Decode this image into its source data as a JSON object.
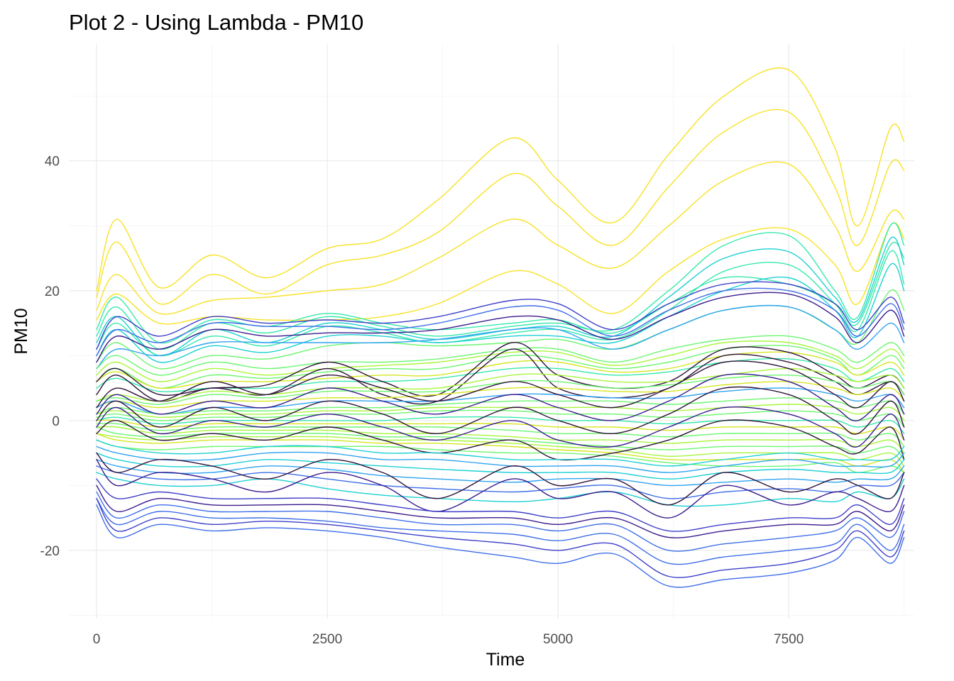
{
  "chart_data": {
    "type": "line",
    "title": "Plot 2 - Using Lambda - PM10",
    "xlabel": "Time",
    "ylabel": "PM10",
    "xlim": [
      -300,
      8860
    ],
    "ylim": [
      -30.5,
      58
    ],
    "x_ticks": [
      0,
      2500,
      5000,
      7500
    ],
    "x_tick_labels": [
      "0",
      "2500",
      "5000",
      "7500"
    ],
    "y_ticks": [
      -20,
      0,
      20,
      40
    ],
    "y_tick_labels": [
      "-20",
      "0",
      "20",
      "40"
    ],
    "grid": true,
    "legend": "none",
    "colormap": "viridis-turbo",
    "palette": [
      "#30123b",
      "#3a1a8c",
      "#3e3ec9",
      "#3f6ee8",
      "#2fa3f0",
      "#1ed0d3",
      "#35e9ab",
      "#6bf66f",
      "#a7f63a",
      "#d4e71f",
      "#f7e225"
    ],
    "x": [
      0,
      220,
      680,
      1250,
      1850,
      2500,
      3100,
      3700,
      4500,
      5000,
      5600,
      6200,
      6800,
      7500,
      8000,
      8250,
      8600,
      8750
    ],
    "series": [
      {
        "values": [
          20,
          31,
          20.5,
          25.5,
          22,
          26.5,
          28,
          34,
          43.5,
          37,
          30.5,
          41,
          50,
          54,
          42,
          30,
          45,
          43
        ],
        "color": "#f7e225"
      },
      {
        "values": [
          19,
          27.5,
          18,
          22.5,
          19.5,
          24,
          25.5,
          29,
          38,
          33,
          27,
          36,
          44.5,
          47.5,
          36,
          27,
          39.5,
          38.5
        ],
        "color": "#f7e225"
      },
      {
        "values": [
          17,
          22.5,
          16.5,
          18.5,
          19,
          20,
          21,
          25,
          31,
          27,
          23.5,
          30,
          37,
          39.5,
          30,
          23,
          32,
          31
        ],
        "color": "#f7e225"
      },
      {
        "values": [
          15.5,
          19.5,
          15,
          16,
          15.5,
          15.5,
          16,
          18,
          23,
          21,
          16.5,
          23,
          28,
          29.5,
          24,
          18,
          30,
          28
        ],
        "color": "#f7e225"
      },
      {
        "values": [
          14,
          19,
          12,
          15.5,
          14.5,
          16.5,
          15,
          14,
          15,
          15.5,
          13.5,
          18,
          22,
          21,
          18,
          15,
          27,
          25
        ],
        "color": "#35e9ab"
      },
      {
        "values": [
          13,
          17.5,
          11,
          15,
          13.5,
          16,
          14.5,
          13,
          14.5,
          15,
          14,
          20,
          27,
          28.5,
          20,
          16,
          30,
          27
        ],
        "color": "#35e9ab"
      },
      {
        "values": [
          12,
          16,
          10,
          14,
          12,
          15,
          14,
          12.5,
          14,
          14.5,
          13,
          19,
          25,
          26,
          19,
          15.5,
          28,
          24
        ],
        "color": "#1ed0d3"
      },
      {
        "values": [
          11,
          15,
          10,
          13,
          11.5,
          14.5,
          13.5,
          12,
          13.5,
          14,
          12.5,
          17,
          23,
          24,
          18,
          14,
          26,
          21
        ],
        "color": "#35e9ab"
      },
      {
        "values": [
          10,
          14,
          9,
          11.5,
          10.5,
          13,
          13,
          12,
          13,
          13,
          12,
          16,
          20,
          22,
          17,
          13,
          24,
          20
        ],
        "color": "#1ed0d3"
      },
      {
        "values": [
          9,
          12,
          8,
          10,
          9.5,
          11.5,
          12,
          11.5,
          12,
          12.5,
          11,
          14,
          17,
          17.5,
          14,
          12,
          20,
          17
        ],
        "color": "#6bf66f"
      },
      {
        "values": [
          11,
          16,
          13,
          16,
          15,
          15.5,
          15,
          16,
          18.5,
          18,
          14,
          18,
          21,
          21,
          18,
          14,
          19,
          15
        ],
        "color": "#3e3ec9"
      },
      {
        "values": [
          10,
          14,
          12,
          15,
          14.5,
          14.5,
          14,
          15,
          17.5,
          17,
          13,
          17,
          20,
          20,
          17,
          13,
          18,
          14
        ],
        "color": "#3f6ee8"
      },
      {
        "values": [
          9,
          13,
          11,
          14,
          13,
          13.5,
          13.5,
          14,
          16,
          15.5,
          12.5,
          16,
          19,
          19.5,
          16,
          12,
          17,
          13
        ],
        "color": "#3a1a8c"
      },
      {
        "values": [
          8,
          11,
          10,
          12,
          12,
          12,
          12,
          12.5,
          14,
          14,
          11,
          14,
          17,
          17.5,
          14,
          11,
          15,
          12
        ],
        "color": "#2fa3f0"
      },
      {
        "values": [
          8,
          10,
          7,
          9,
          8,
          9,
          9,
          9.5,
          11,
          11,
          9,
          11,
          12.5,
          13,
          11,
          9,
          12,
          10
        ],
        "color": "#6bf66f"
      },
      {
        "values": [
          7,
          9,
          6,
          8,
          7,
          8,
          8.5,
          9,
          10.5,
          10.5,
          8.5,
          10,
          12,
          12,
          10,
          8,
          11,
          9
        ],
        "color": "#a7f63a"
      },
      {
        "values": [
          6,
          8,
          5,
          7,
          6.5,
          7.5,
          8,
          8,
          10,
          9.5,
          8,
          9,
          11,
          11.5,
          9.5,
          7,
          10,
          8
        ],
        "color": "#6bf66f"
      },
      {
        "values": [
          6,
          7.5,
          5,
          6,
          6,
          6.5,
          7,
          7,
          9,
          9,
          7.5,
          8,
          10,
          10.5,
          9,
          7,
          9,
          7
        ],
        "color": "#d4e71f"
      },
      {
        "values": [
          5,
          6.5,
          4.5,
          5,
          5,
          6,
          6,
          6.5,
          8,
          8,
          7,
          7.5,
          9,
          9.5,
          8,
          6,
          8,
          6
        ],
        "color": "#35e9ab"
      },
      {
        "values": [
          6,
          8,
          4,
          5,
          5.5,
          9,
          6,
          4,
          12,
          7,
          5,
          6,
          11,
          10.5,
          7,
          5,
          7,
          5
        ],
        "color": "#30123b"
      },
      {
        "values": [
          4,
          7,
          3,
          5,
          4,
          8,
          4,
          3,
          11,
          5,
          3.5,
          5,
          10,
          9,
          6,
          4,
          6,
          4
        ],
        "color": "#30123b"
      },
      {
        "values": [
          3,
          4,
          3,
          4.5,
          4,
          5,
          5,
          5,
          7,
          7,
          6,
          6,
          7,
          8,
          7,
          6,
          7,
          5
        ],
        "color": "#a7f63a"
      },
      {
        "values": [
          3,
          3.5,
          2.5,
          4,
          3.5,
          4.5,
          4.5,
          4.5,
          6,
          6,
          5,
          5.5,
          6.5,
          7,
          6,
          5,
          6,
          4
        ],
        "color": "#6bf66f"
      },
      {
        "values": [
          2,
          3,
          2,
          3,
          3,
          3.5,
          3.5,
          4,
          5,
          5,
          4.5,
          4.5,
          5.5,
          6,
          5,
          4,
          5,
          3
        ],
        "color": "#d4e71f"
      },
      {
        "values": [
          2,
          3,
          1,
          2,
          2,
          3,
          3,
          3,
          4,
          4,
          3.5,
          3.5,
          4.5,
          5,
          4,
          3,
          4,
          2
        ],
        "color": "#2fa3f0"
      },
      {
        "values": [
          1,
          2,
          1,
          1.5,
          1.5,
          2,
          2,
          2.5,
          3,
          3,
          3,
          2.5,
          3,
          3.5,
          3,
          2,
          3,
          1
        ],
        "color": "#6bf66f"
      },
      {
        "values": [
          1,
          1.5,
          0.5,
          1,
          1,
          1.5,
          1.5,
          2,
          2,
          2,
          2,
          1.5,
          2,
          2.5,
          2,
          1,
          2,
          0
        ],
        "color": "#a7f63a"
      },
      {
        "values": [
          0.5,
          1,
          0,
          0.5,
          0.5,
          1,
          1,
          1.5,
          1.5,
          1,
          1,
          0.5,
          1,
          1.5,
          1,
          0,
          1,
          -1
        ],
        "color": "#6bf66f"
      },
      {
        "values": [
          0,
          0.5,
          -0.5,
          0,
          0,
          0,
          0,
          0.5,
          0.5,
          0,
          0,
          -0.5,
          0,
          0,
          0,
          -1,
          0,
          -2
        ],
        "color": "#35e9ab"
      },
      {
        "values": [
          0,
          0,
          -1,
          -0.5,
          -0.5,
          -0.5,
          -0.5,
          -0.5,
          -0.5,
          -1,
          -1,
          -1.5,
          -1,
          -1,
          -1,
          -2,
          -1,
          -3
        ],
        "color": "#d4e71f"
      },
      {
        "values": [
          -0.5,
          -0.5,
          -1.5,
          -1,
          -1,
          -1,
          -1,
          -1,
          -1.5,
          -2,
          -2,
          -2.5,
          -2,
          -2,
          -2,
          -3,
          -2,
          -4
        ],
        "color": "#6bf66f"
      },
      {
        "values": [
          -1,
          -1,
          -2,
          -1.5,
          -1.5,
          -1.5,
          -2,
          -2,
          -2.5,
          -3,
          -3,
          -3.5,
          -3,
          -3,
          -3,
          -4,
          -3,
          -5
        ],
        "color": "#a7f63a"
      },
      {
        "values": [
          -1,
          -2,
          -2.5,
          -2,
          -2,
          -2,
          -2.5,
          -2.5,
          -3,
          -3.5,
          -4,
          -4.5,
          -4,
          -4,
          -4,
          -5,
          -4,
          -6
        ],
        "color": "#6bf66f"
      },
      {
        "values": [
          -2,
          -2.5,
          -3,
          -2.5,
          -2.5,
          -2.5,
          -3,
          -3,
          -3.5,
          -4,
          -4.5,
          -5.5,
          -5,
          -5,
          -5,
          -6,
          -5,
          -7
        ],
        "color": "#a7f63a"
      },
      {
        "values": [
          -2,
          -3,
          -3.5,
          -3,
          -3,
          -3,
          -3.5,
          -3.5,
          -4,
          -4.5,
          -5,
          -6,
          -6,
          -6,
          -6,
          -7,
          -6,
          -8
        ],
        "color": "#d4e71f"
      },
      {
        "values": [
          -3,
          -4,
          -4.5,
          -4,
          -4,
          -4,
          -4,
          -4.5,
          -5,
          -5,
          -5.5,
          -6.5,
          -7,
          -7,
          -6.5,
          -8,
          -7,
          -8
        ],
        "color": "#6bf66f"
      },
      {
        "values": [
          2,
          5,
          3,
          6,
          4,
          7,
          5,
          3,
          6,
          4,
          2,
          5,
          9,
          8,
          4,
          2,
          6,
          3
        ],
        "color": "#30123b"
      },
      {
        "values": [
          1,
          4,
          1,
          3,
          2,
          5,
          3,
          1,
          4,
          2,
          0,
          3,
          7,
          6,
          2,
          0,
          4,
          1
        ],
        "color": "#3a1a8c"
      },
      {
        "values": [
          0,
          3,
          -1,
          2,
          0,
          3,
          1,
          -2,
          2,
          0,
          -2,
          1,
          5,
          4,
          0,
          -2,
          3,
          -1
        ],
        "color": "#30123b"
      },
      {
        "values": [
          -1,
          2,
          -2,
          0,
          -1,
          1,
          -1,
          -3,
          0,
          -3,
          -4,
          -1,
          2,
          1,
          -2,
          -4,
          1,
          -3
        ],
        "color": "#3a1a8c"
      },
      {
        "values": [
          -2,
          0,
          -3,
          -2,
          -3,
          -1,
          -3,
          -5,
          -3,
          -6,
          -5,
          -3,
          0,
          -1,
          -4,
          -5,
          -1,
          -6
        ],
        "color": "#30123b"
      },
      {
        "values": [
          -3,
          -4,
          -5,
          -5,
          -4,
          -4,
          -5,
          -5,
          -6,
          -6,
          -6,
          -7,
          -6,
          -5,
          -6,
          -6,
          -6,
          -4
        ],
        "color": "#1ed0d3"
      },
      {
        "values": [
          -4,
          -5,
          -6,
          -6,
          -5,
          -5,
          -6,
          -6,
          -7,
          -7,
          -7,
          -8,
          -7,
          -6,
          -7,
          -7,
          -7,
          -5
        ],
        "color": "#2fa3f0"
      },
      {
        "values": [
          -5,
          -6,
          -7,
          -7,
          -6,
          -6.5,
          -7,
          -7.5,
          -8,
          -8,
          -8,
          -9,
          -8,
          -7.5,
          -8,
          -8,
          -8,
          -6
        ],
        "color": "#1ed0d3"
      },
      {
        "values": [
          -6,
          -7,
          -8,
          -8,
          -7,
          -7.5,
          -8.5,
          -9,
          -9.5,
          -9,
          -9,
          -10,
          -9.5,
          -9,
          -9.5,
          -9,
          -9,
          -7
        ],
        "color": "#2fa3f0"
      },
      {
        "values": [
          -7,
          -8,
          -9,
          -9,
          -8,
          -9,
          -10,
          -10.5,
          -11,
          -10.5,
          -10,
          -12,
          -11,
          -10.5,
          -11,
          -10,
          -10,
          -8
        ],
        "color": "#3f6ee8"
      },
      {
        "values": [
          -8,
          -9,
          -10,
          -10,
          -9,
          -10.5,
          -11.5,
          -12,
          -12.5,
          -12,
          -11,
          -13,
          -13,
          -12,
          -12.5,
          -11,
          -12,
          -9
        ],
        "color": "#1ed0d3"
      },
      {
        "values": [
          -5,
          -8,
          -6,
          -7,
          -9,
          -6,
          -8,
          -12,
          -7,
          -10,
          -9,
          -13,
          -8,
          -11,
          -9,
          -10,
          -12,
          -8
        ],
        "color": "#30123b"
      },
      {
        "values": [
          -6,
          -10,
          -8,
          -9,
          -11,
          -8,
          -10,
          -14,
          -9,
          -12,
          -11,
          -15,
          -10,
          -13,
          -11,
          -12,
          -14,
          -10
        ],
        "color": "#3a1a8c"
      },
      {
        "values": [
          -9,
          -12,
          -11,
          -12,
          -12,
          -12,
          -13,
          -14,
          -14,
          -15,
          -14,
          -17,
          -16,
          -15,
          -15,
          -13,
          -16,
          -12
        ],
        "color": "#3e3ec9"
      },
      {
        "values": [
          -10,
          -14,
          -12,
          -13,
          -13,
          -13,
          -14,
          -15,
          -15,
          -16,
          -15,
          -18,
          -17,
          -16,
          -16,
          -14,
          -17,
          -13
        ],
        "color": "#3a1a8c"
      },
      {
        "values": [
          -11,
          -15,
          -13,
          -14,
          -14,
          -14,
          -15,
          -16,
          -16,
          -17,
          -16,
          -20,
          -19,
          -18,
          -17,
          -15,
          -18,
          -14
        ],
        "color": "#3f6ee8"
      },
      {
        "values": [
          -12,
          -16,
          -14,
          -15,
          -15,
          -15.5,
          -16.5,
          -17,
          -17.5,
          -18.5,
          -17.5,
          -22,
          -21,
          -20,
          -19,
          -16,
          -20,
          -16
        ],
        "color": "#3f6ee8"
      },
      {
        "values": [
          -12,
          -17,
          -15,
          -16,
          -15.5,
          -16,
          -17,
          -18,
          -19,
          -20,
          -19,
          -24,
          -23,
          -22,
          -20,
          -17,
          -21,
          -17
        ],
        "color": "#3e3ec9"
      },
      {
        "values": [
          -13,
          -18,
          -16,
          -17,
          -16.5,
          -17,
          -18,
          -19.5,
          -21,
          -22,
          -20.5,
          -25.5,
          -24.5,
          -23.5,
          -21.5,
          -18,
          -22,
          -18
        ],
        "color": "#3f6ee8"
      }
    ]
  }
}
